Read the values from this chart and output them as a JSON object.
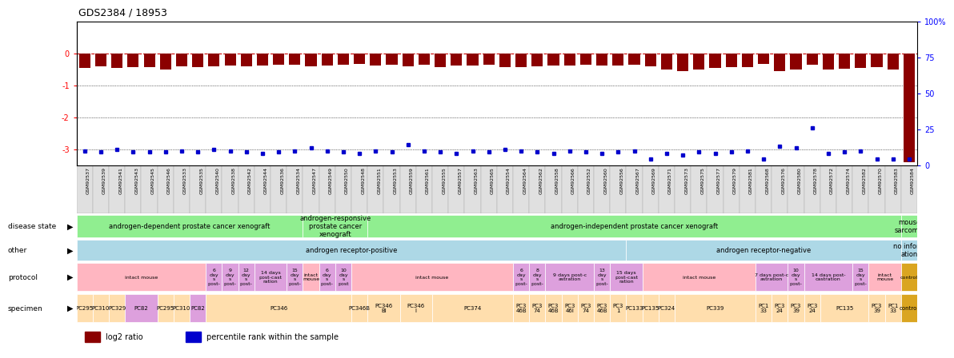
{
  "title": "GDS2384 / 18953",
  "sample_ids": [
    "GSM92537",
    "GSM92539",
    "GSM92541",
    "GSM92543",
    "GSM92545",
    "GSM92546",
    "GSM92533",
    "GSM92535",
    "GSM92540",
    "GSM92538",
    "GSM92542",
    "GSM92544",
    "GSM92536",
    "GSM92534",
    "GSM92547",
    "GSM92549",
    "GSM92550",
    "GSM92548",
    "GSM92551",
    "GSM92553",
    "GSM92559",
    "GSM92561",
    "GSM92555",
    "GSM92557",
    "GSM92563",
    "GSM92565",
    "GSM92554",
    "GSM92564",
    "GSM92562",
    "GSM92558",
    "GSM92566",
    "GSM92552",
    "GSM92560",
    "GSM92556",
    "GSM92567",
    "GSM92569",
    "GSM92571",
    "GSM92573",
    "GSM92575",
    "GSM92577",
    "GSM92579",
    "GSM92581",
    "GSM92568",
    "GSM92576",
    "GSM92580",
    "GSM92578",
    "GSM92572",
    "GSM92574",
    "GSM92582",
    "GSM92570",
    "GSM92583",
    "GSM92584"
  ],
  "log2_ratio": [
    -0.45,
    -0.4,
    -0.45,
    -0.42,
    -0.44,
    -0.5,
    -0.4,
    -0.42,
    -0.4,
    -0.38,
    -0.4,
    -0.38,
    -0.36,
    -0.35,
    -0.4,
    -0.38,
    -0.36,
    -0.34,
    -0.38,
    -0.36,
    -0.4,
    -0.36,
    -0.42,
    -0.38,
    -0.38,
    -0.35,
    -0.44,
    -0.42,
    -0.4,
    -0.38,
    -0.37,
    -0.35,
    -0.38,
    -0.37,
    -0.36,
    -0.4,
    -0.5,
    -0.55,
    -0.5,
    -0.46,
    -0.44,
    -0.42,
    -0.33,
    -0.55,
    -0.5,
    -0.35,
    -0.5,
    -0.48,
    -0.46,
    -0.42,
    -0.5,
    -3.4
  ],
  "percentile": [
    10,
    9,
    11,
    9,
    9,
    9,
    10,
    9,
    11,
    10,
    9,
    8,
    9,
    10,
    12,
    10,
    9,
    8,
    10,
    9,
    14,
    10,
    9,
    8,
    10,
    9,
    11,
    10,
    9,
    8,
    10,
    9,
    8,
    9,
    10,
    4,
    8,
    7,
    9,
    8,
    9,
    10,
    4,
    13,
    12,
    26,
    8,
    9,
    10,
    4,
    4,
    4
  ],
  "disease_state_blocks": [
    {
      "label": "androgen-dependent prostate cancer xenograft",
      "start": 0,
      "end": 14,
      "color": "#90EE90"
    },
    {
      "label": "androgen-responsive\nprostate cancer\nxenograft",
      "start": 14,
      "end": 18,
      "color": "#90EE90"
    },
    {
      "label": "androgen-independent prostate cancer xenograft",
      "start": 18,
      "end": 51,
      "color": "#90EE90"
    },
    {
      "label": "mouse\nsarcoma",
      "start": 51,
      "end": 52,
      "color": "#90EE90"
    }
  ],
  "other_blocks": [
    {
      "label": "androgen receptor-positive",
      "start": 0,
      "end": 34,
      "color": "#ADD8E6"
    },
    {
      "label": "androgen receptor-negative",
      "start": 34,
      "end": 51,
      "color": "#ADD8E6"
    },
    {
      "label": "no inform\nation",
      "start": 51,
      "end": 52,
      "color": "#ADD8E6"
    }
  ],
  "protocol_blocks": [
    {
      "label": "intact mouse",
      "start": 0,
      "end": 8,
      "color": "#FFB6C1"
    },
    {
      "label": "6\nday\ns\npost-",
      "start": 8,
      "end": 9,
      "color": "#DDA0DD"
    },
    {
      "label": "9\nday\ns\npost-",
      "start": 9,
      "end": 10,
      "color": "#DDA0DD"
    },
    {
      "label": "12\nday\ns\npost-",
      "start": 10,
      "end": 11,
      "color": "#DDA0DD"
    },
    {
      "label": "14 days\npost-cast\nration",
      "start": 11,
      "end": 13,
      "color": "#DDA0DD"
    },
    {
      "label": "15\nday\ns\npost-",
      "start": 13,
      "end": 14,
      "color": "#DDA0DD"
    },
    {
      "label": "intact\nmouse",
      "start": 14,
      "end": 15,
      "color": "#FFB6C1"
    },
    {
      "label": "6\nday\ns\npost-",
      "start": 15,
      "end": 16,
      "color": "#DDA0DD"
    },
    {
      "label": "10\nday\ns\npost",
      "start": 16,
      "end": 17,
      "color": "#DDA0DD"
    },
    {
      "label": "intact mouse",
      "start": 17,
      "end": 27,
      "color": "#FFB6C1"
    },
    {
      "label": "6\nday\ns\npost-",
      "start": 27,
      "end": 28,
      "color": "#DDA0DD"
    },
    {
      "label": "8\nday\ns\npost-",
      "start": 28,
      "end": 29,
      "color": "#DDA0DD"
    },
    {
      "label": "9 days post-c\nastration",
      "start": 29,
      "end": 32,
      "color": "#DDA0DD"
    },
    {
      "label": "13\nday\ns\npost-",
      "start": 32,
      "end": 33,
      "color": "#DDA0DD"
    },
    {
      "label": "15 days\npost-cast\nration",
      "start": 33,
      "end": 35,
      "color": "#DDA0DD"
    },
    {
      "label": "intact mouse",
      "start": 35,
      "end": 42,
      "color": "#FFB6C1"
    },
    {
      "label": "7 days post-c\nastration",
      "start": 42,
      "end": 44,
      "color": "#DDA0DD"
    },
    {
      "label": "10\nday\ns\npost-",
      "start": 44,
      "end": 45,
      "color": "#DDA0DD"
    },
    {
      "label": "14 days post-\ncastration",
      "start": 45,
      "end": 48,
      "color": "#DDA0DD"
    },
    {
      "label": "15\nday\ns\npost-",
      "start": 48,
      "end": 49,
      "color": "#DDA0DD"
    },
    {
      "label": "intact\nmouse",
      "start": 49,
      "end": 51,
      "color": "#FFB6C1"
    },
    {
      "label": "control",
      "start": 51,
      "end": 52,
      "color": "#DAA520"
    }
  ],
  "specimen_blocks": [
    {
      "label": "PC295",
      "start": 0,
      "end": 1,
      "color": "#FFDEAD"
    },
    {
      "label": "PC310",
      "start": 1,
      "end": 2,
      "color": "#FFDEAD"
    },
    {
      "label": "PC329",
      "start": 2,
      "end": 3,
      "color": "#FFDEAD"
    },
    {
      "label": "PC82",
      "start": 3,
      "end": 5,
      "color": "#DDA0DD"
    },
    {
      "label": "PC295",
      "start": 5,
      "end": 6,
      "color": "#FFDEAD"
    },
    {
      "label": "PC310",
      "start": 6,
      "end": 7,
      "color": "#FFDEAD"
    },
    {
      "label": "PC82",
      "start": 7,
      "end": 8,
      "color": "#DDA0DD"
    },
    {
      "label": "PC346",
      "start": 8,
      "end": 17,
      "color": "#FFDEAD"
    },
    {
      "label": "PC346B",
      "start": 17,
      "end": 18,
      "color": "#FFDEAD"
    },
    {
      "label": "PC346\nBI",
      "start": 18,
      "end": 20,
      "color": "#FFDEAD"
    },
    {
      "label": "PC346\nI",
      "start": 20,
      "end": 22,
      "color": "#FFDEAD"
    },
    {
      "label": "PC374",
      "start": 22,
      "end": 27,
      "color": "#FFDEAD"
    },
    {
      "label": "PC3\n46B",
      "start": 27,
      "end": 28,
      "color": "#FFDEAD"
    },
    {
      "label": "PC3\n74",
      "start": 28,
      "end": 29,
      "color": "#FFDEAD"
    },
    {
      "label": "PC3\n46B",
      "start": 29,
      "end": 30,
      "color": "#FFDEAD"
    },
    {
      "label": "PC3\n46I",
      "start": 30,
      "end": 31,
      "color": "#FFDEAD"
    },
    {
      "label": "PC3\n74",
      "start": 31,
      "end": 32,
      "color": "#FFDEAD"
    },
    {
      "label": "PC3\n46B",
      "start": 32,
      "end": 33,
      "color": "#FFDEAD"
    },
    {
      "label": "PC3\n1",
      "start": 33,
      "end": 34,
      "color": "#FFDEAD"
    },
    {
      "label": "PC133",
      "start": 34,
      "end": 35,
      "color": "#FFDEAD"
    },
    {
      "label": "PC135",
      "start": 35,
      "end": 36,
      "color": "#FFDEAD"
    },
    {
      "label": "PC324",
      "start": 36,
      "end": 37,
      "color": "#FFDEAD"
    },
    {
      "label": "PC339",
      "start": 37,
      "end": 42,
      "color": "#FFDEAD"
    },
    {
      "label": "PC1\n33",
      "start": 42,
      "end": 43,
      "color": "#FFDEAD"
    },
    {
      "label": "PC3\n24",
      "start": 43,
      "end": 44,
      "color": "#FFDEAD"
    },
    {
      "label": "PC3\n39",
      "start": 44,
      "end": 45,
      "color": "#FFDEAD"
    },
    {
      "label": "PC3\n24",
      "start": 45,
      "end": 46,
      "color": "#FFDEAD"
    },
    {
      "label": "PC135",
      "start": 46,
      "end": 49,
      "color": "#FFDEAD"
    },
    {
      "label": "PC3\n39",
      "start": 49,
      "end": 50,
      "color": "#FFDEAD"
    },
    {
      "label": "PC1\n33",
      "start": 50,
      "end": 51,
      "color": "#FFDEAD"
    },
    {
      "label": "control",
      "start": 51,
      "end": 52,
      "color": "#DAA520"
    }
  ],
  "ylim": [
    -3.5,
    1.0
  ],
  "right_axis_ticks": [
    0,
    25,
    50,
    75,
    100
  ],
  "right_axis_labels": [
    "0",
    "25",
    "50",
    "75",
    "100%"
  ],
  "bar_color": "#8B0000",
  "dot_color": "#0000CD",
  "zero_line_color": "#CC0000",
  "grid_color": "#000000",
  "bg_color": "#FFFFFF"
}
